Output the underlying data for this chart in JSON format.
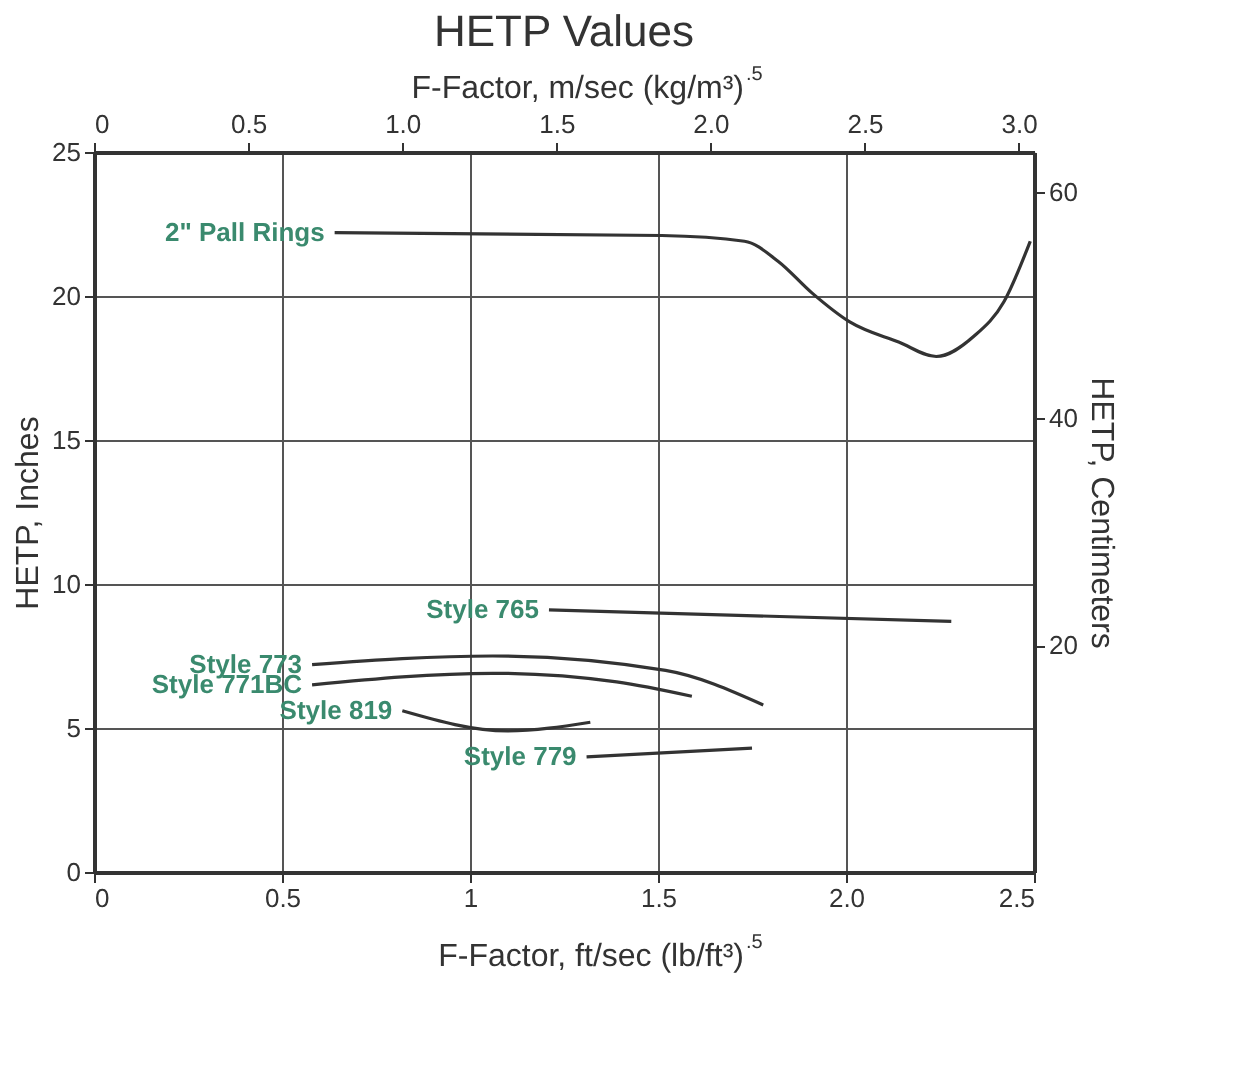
{
  "chart_data": {
    "type": "line",
    "title": "HETP Values",
    "xlabel": "F-Factor, ft/sec (lb/ft³)$^{.5}$",
    "x2label": "F-Factor, m/sec (kg/m³)$^{.5}$",
    "ylabel": "HETP, Inches",
    "y2label": "HETP, Centimeters",
    "xlim": [
      0,
      2.5
    ],
    "xticks": [
      0,
      0.5,
      1,
      1.5,
      {
        "value": 2,
        "label": "2.0"
      },
      {
        "value": 2.5,
        "label": "2.5"
      }
    ],
    "x2lim": [
      0,
      3.05
    ],
    "x2ticks": [
      0,
      0.5,
      {
        "value": 1,
        "label": "1.0"
      },
      1.5,
      {
        "value": 2,
        "label": "2.0"
      },
      2.5,
      {
        "value": 3,
        "label": "3.0"
      }
    ],
    "ylim": [
      0,
      25
    ],
    "yticks": [
      0,
      5,
      10,
      15,
      20,
      25
    ],
    "y2lim": [
      0,
      63.5
    ],
    "y2ticks": [
      20,
      40,
      60
    ],
    "grid": true,
    "legend": false,
    "marker": "none",
    "line_style": "solid",
    "series": [
      {
        "name": "2\" Pall Rings",
        "color": "#333333",
        "x": [
          0.64,
          1.51,
          1.73,
          1.82,
          1.91,
          2.01,
          2.14,
          2.24,
          2.34,
          2.42,
          2.49
        ],
        "values": [
          22.2,
          22.1,
          21.9,
          21.2,
          20.1,
          19.1,
          18.4,
          17.9,
          18.6,
          19.8,
          21.9
        ]
      },
      {
        "name": "Style 765",
        "color": "#333333",
        "x": [
          1.21,
          2.28
        ],
        "values": [
          9.1,
          8.7
        ]
      },
      {
        "name": "Style 773",
        "color": "#333333",
        "x": [
          0.58,
          1.06,
          1.52,
          1.78
        ],
        "values": [
          7.2,
          7.5,
          7.0,
          5.8
        ]
      },
      {
        "name": "Style 771BC",
        "color": "#333333",
        "x": [
          0.58,
          1.06,
          1.39,
          1.59
        ],
        "values": [
          6.5,
          6.9,
          6.6,
          6.1
        ]
      },
      {
        "name": "Style 819",
        "color": "#333333",
        "x": [
          0.82,
          1.1,
          1.32
        ],
        "values": [
          5.6,
          4.9,
          5.2
        ]
      },
      {
        "name": "Style 779",
        "color": "#333333",
        "x": [
          1.31,
          1.75
        ],
        "values": [
          4.0,
          4.3
        ]
      }
    ]
  }
}
